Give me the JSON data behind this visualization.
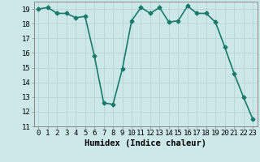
{
  "x": [
    0,
    1,
    2,
    3,
    4,
    5,
    6,
    7,
    8,
    9,
    10,
    11,
    12,
    13,
    14,
    15,
    16,
    17,
    18,
    19,
    20,
    21,
    22,
    23
  ],
  "y": [
    19.0,
    19.1,
    18.7,
    18.7,
    18.4,
    18.5,
    15.8,
    12.6,
    12.5,
    14.9,
    18.2,
    19.1,
    18.7,
    19.1,
    18.1,
    18.2,
    19.2,
    18.7,
    18.7,
    18.1,
    16.4,
    14.6,
    13.0,
    11.5
  ],
  "line_color": "#1a7a6e",
  "marker": "D",
  "marker_size": 2.5,
  "bg_color": "#cce8e8",
  "grid_color": "#b8d4d4",
  "xlabel": "Humidex (Indice chaleur)",
  "xlim": [
    -0.5,
    23.5
  ],
  "ylim": [
    11,
    19.5
  ],
  "yticks": [
    11,
    12,
    13,
    14,
    15,
    16,
    17,
    18,
    19
  ],
  "xticks": [
    0,
    1,
    2,
    3,
    4,
    5,
    6,
    7,
    8,
    9,
    10,
    11,
    12,
    13,
    14,
    15,
    16,
    17,
    18,
    19,
    20,
    21,
    22,
    23
  ],
  "xlabel_fontsize": 7.5,
  "tick_fontsize": 6.5,
  "line_width": 1.2
}
